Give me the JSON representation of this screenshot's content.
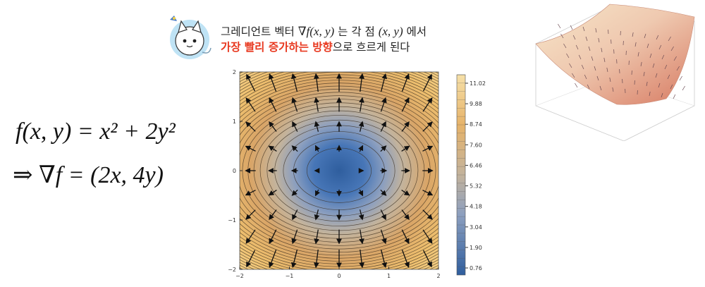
{
  "caption": {
    "line1_pre": "그레디언트 벡터 ",
    "line1_math": "∇f(x, y)",
    "line1_mid": " 는 각 점 ",
    "line1_math2": "(x, y)",
    "line1_post": " 에서",
    "line2_highlight": "가장 빨리 증가하는 방향",
    "line2_post": "으로 흐르게 된다"
  },
  "formula": {
    "line1": "f(x, y) = x² + 2y²",
    "line2": "⇒ ∇f = (2x, 4y)"
  },
  "chart_data": [
    {
      "type": "heatmap",
      "description_function": "f(x, y) = x^2 + 2y^2",
      "gradient": "(2x, 4y)",
      "x_ticks": [
        "−2",
        "−1",
        "0",
        "1",
        "2"
      ],
      "y_ticks": [
        "2",
        "1",
        "0",
        "−1",
        "−2"
      ],
      "xlim": [
        -2,
        2
      ],
      "ylim": [
        -2,
        2
      ],
      "colorbar_ticks": [
        "11.02",
        "9.88",
        "8.74",
        "7.60",
        "6.46",
        "5.32",
        "4.18",
        "3.04",
        "1.90",
        "0.76"
      ],
      "colors": {
        "low": "#2f5e9e",
        "mid": "#c9c2b3",
        "high": "#f3c56a"
      }
    }
  ],
  "icons": {
    "mascot": "robot-cat-mascot-icon"
  }
}
